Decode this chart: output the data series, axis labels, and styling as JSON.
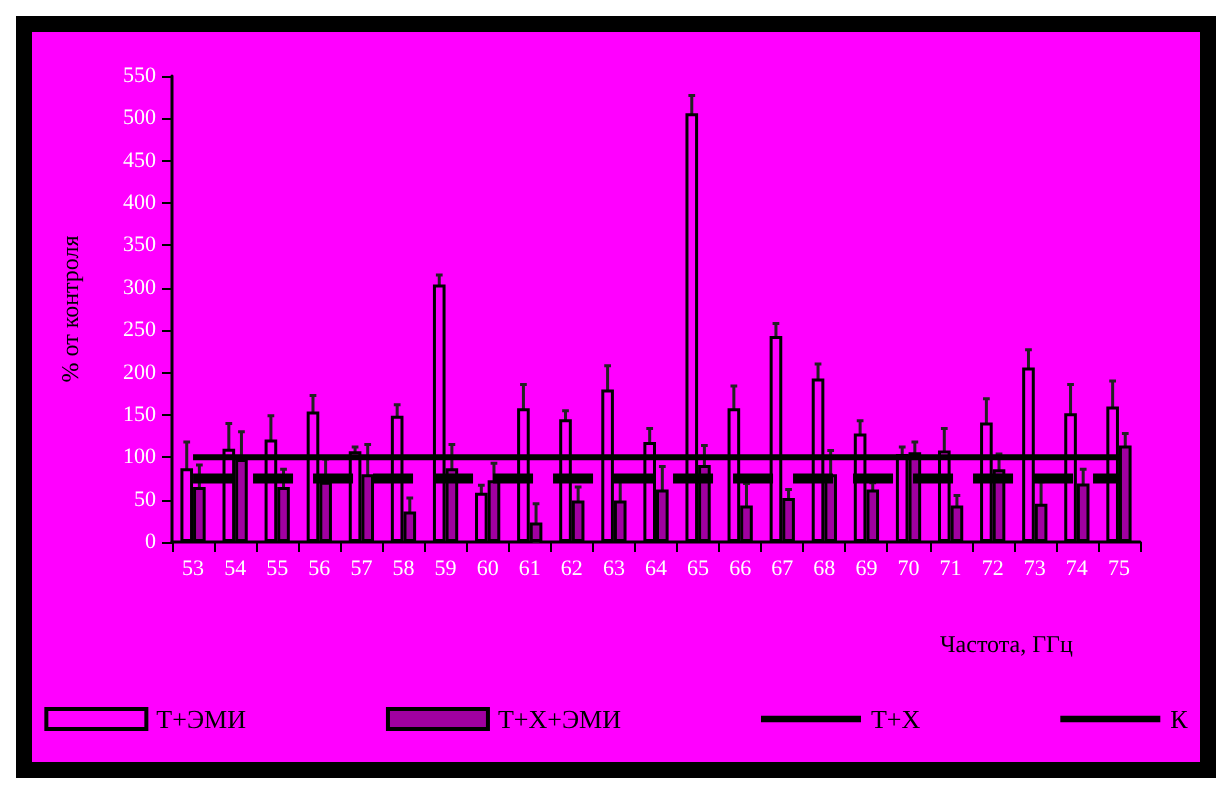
{
  "chart_data": {
    "type": "bar",
    "ylabel": "% от контроля",
    "xlabel": "Частота, ГГц",
    "categories": [
      "53",
      "54",
      "55",
      "56",
      "57",
      "58",
      "59",
      "60",
      "61",
      "62",
      "63",
      "64",
      "65",
      "66",
      "67",
      "68",
      "69",
      "70",
      "71",
      "72",
      "73",
      "74",
      "75"
    ],
    "series": [
      {
        "name": "Т+ЭМИ",
        "color": "#ff00ff",
        "values": [
          87,
          110,
          121,
          154,
          107,
          149,
          304,
          58,
          158,
          145,
          180,
          118,
          506,
          158,
          243,
          193,
          128,
          104,
          108,
          141,
          206,
          152,
          160
        ],
        "errors": [
          31,
          30,
          28,
          19,
          5,
          13,
          11,
          9,
          28,
          10,
          28,
          16,
          21,
          26,
          15,
          17,
          15,
          8,
          26,
          28,
          21,
          34,
          30
        ]
      },
      {
        "name": "Т+Х+ЭМИ",
        "color": "#a000a0",
        "values": [
          65,
          98,
          65,
          71,
          80,
          36,
          87,
          73,
          23,
          49,
          49,
          62,
          91,
          43,
          52,
          80,
          62,
          106,
          43,
          86,
          45,
          69,
          114
        ],
        "errors": [
          26,
          32,
          21,
          27,
          35,
          16,
          28,
          20,
          22,
          16,
          29,
          27,
          23,
          26,
          10,
          28,
          8,
          12,
          12,
          18,
          26,
          17,
          14
        ]
      },
      {
        "name": "Т+Х",
        "type": "line",
        "color": "#000000",
        "line_style": "dashed",
        "values": [
          75,
          75,
          75,
          75,
          75,
          75,
          75,
          75,
          75,
          75,
          75,
          75,
          75,
          75,
          75,
          75,
          75,
          75,
          75,
          75,
          75,
          75,
          75
        ]
      },
      {
        "name": "К",
        "type": "line",
        "color": "#000000",
        "line_style": "solid",
        "values": [
          100,
          100,
          100,
          100,
          100,
          100,
          100,
          100,
          100,
          100,
          100,
          100,
          100,
          100,
          100,
          100,
          100,
          100,
          100,
          100,
          100,
          100,
          100
        ]
      }
    ],
    "ylim": [
      0,
      550
    ],
    "yticks": [
      0,
      50,
      100,
      150,
      200,
      250,
      300,
      350,
      400,
      450,
      500,
      550
    ],
    "grid": false,
    "legend": "bottom",
    "marker": "none"
  }
}
